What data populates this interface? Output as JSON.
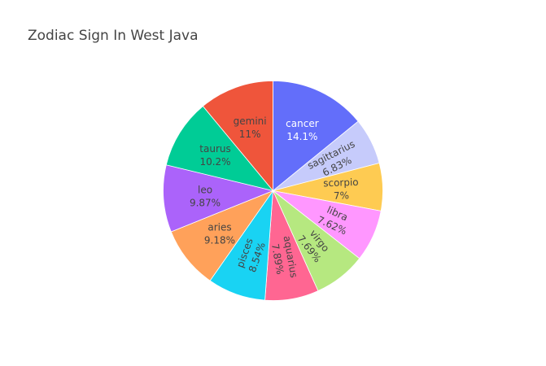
{
  "chart_data": {
    "type": "pie",
    "title": "Zodiac Sign In West Java",
    "slices": [
      {
        "label": "cancer",
        "value": 14.1,
        "pct_text": "14.1%",
        "color": "#636efa",
        "text_color": "#ffffff"
      },
      {
        "label": "sagittarius",
        "value": 6.83,
        "pct_text": "6.83%",
        "color": "#c6cbfb",
        "text_color": "#444444"
      },
      {
        "label": "scorpio",
        "value": 7.0,
        "pct_text": "7%",
        "color": "#fecb52",
        "text_color": "#444444"
      },
      {
        "label": "libra",
        "value": 7.62,
        "pct_text": "7.62%",
        "color": "#ff97ff",
        "text_color": "#444444"
      },
      {
        "label": "virgo",
        "value": 7.69,
        "pct_text": "7.69%",
        "color": "#b6e880",
        "text_color": "#444444"
      },
      {
        "label": "aquarius",
        "value": 7.89,
        "pct_text": "7.89%",
        "color": "#ff6692",
        "text_color": "#444444"
      },
      {
        "label": "pisces",
        "value": 8.54,
        "pct_text": "8.54%",
        "color": "#19d3f3",
        "text_color": "#444444"
      },
      {
        "label": "aries",
        "value": 9.18,
        "pct_text": "9.18%",
        "color": "#ffa15a",
        "text_color": "#444444"
      },
      {
        "label": "leo",
        "value": 9.87,
        "pct_text": "9.87%",
        "color": "#ab63fa",
        "text_color": "#444444"
      },
      {
        "label": "taurus",
        "value": 10.2,
        "pct_text": "10.2%",
        "color": "#00cc96",
        "text_color": "#444444"
      },
      {
        "label": "gemini",
        "value": 11.0,
        "pct_text": "11%",
        "color": "#ef553b",
        "text_color": "#444444"
      }
    ],
    "direction": "clockwise",
    "legend": "none"
  }
}
